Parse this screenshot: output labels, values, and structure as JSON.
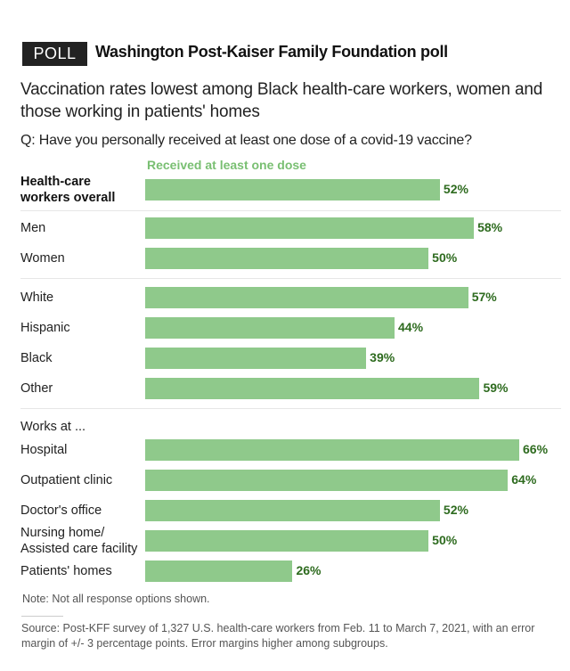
{
  "header": {
    "badge": "POLL",
    "kicker": "Washington Post-Kaiser Family Foundation poll",
    "headline": "Vaccination rates lowest among Black health-care workers, women and those working in patients' homes",
    "question": "Q: Have you personally received at least one dose of a covid-19 vaccine?"
  },
  "chart_data": {
    "type": "bar",
    "orientation": "horizontal",
    "title": "Vaccination rates lowest among Black health-care workers, women and those working in patients' homes",
    "legend": "Received at least one dose",
    "unit": "%",
    "xlim": [
      0,
      66
    ],
    "bar_color": "#8fc98b",
    "label_color": "#2e6b1f",
    "groups": [
      {
        "heading": "",
        "rows": [
          {
            "label": "Health-care workers overall",
            "label_lines": [
              "Health-care",
              "workers overall"
            ],
            "value": 52,
            "value_label": "52%",
            "bold": true
          }
        ]
      },
      {
        "heading": "",
        "rows": [
          {
            "label": "Men",
            "value": 58,
            "value_label": "58%"
          },
          {
            "label": "Women",
            "value": 50,
            "value_label": "50%"
          }
        ]
      },
      {
        "heading": "",
        "rows": [
          {
            "label": "White",
            "value": 57,
            "value_label": "57%"
          },
          {
            "label": "Hispanic",
            "value": 44,
            "value_label": "44%"
          },
          {
            "label": "Black",
            "value": 39,
            "value_label": "39%"
          },
          {
            "label": "Other",
            "value": 59,
            "value_label": "59%"
          }
        ]
      },
      {
        "heading": "Works at ...",
        "rows": [
          {
            "label": "Hospital",
            "value": 66,
            "value_label": "66%"
          },
          {
            "label": "Outpatient clinic",
            "value": 64,
            "value_label": "64%"
          },
          {
            "label": "Doctor's office",
            "value": 52,
            "value_label": "52%"
          },
          {
            "label": "Nursing home/ Assisted care facility",
            "label_lines": [
              "Nursing home/",
              "Assisted care facility"
            ],
            "value": 50,
            "value_label": "50%"
          },
          {
            "label": "Patients' homes",
            "value": 26,
            "value_label": "26%"
          }
        ]
      }
    ]
  },
  "footer": {
    "note": "Note: Not all response options shown.",
    "source": "Source: Post-KFF survey of 1,327 U.S. health-care workers from Feb. 11 to March 7, 2021, with an error margin of +/- 3 percentage points. Error margins higher among subgroups."
  }
}
